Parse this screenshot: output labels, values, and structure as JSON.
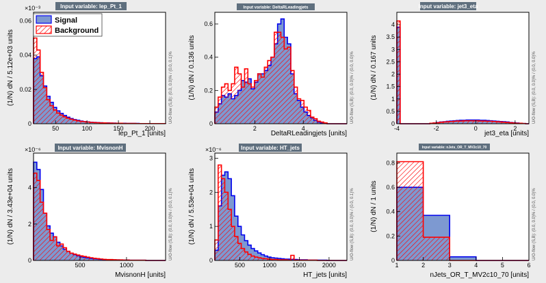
{
  "colors": {
    "signal_fill": "#7d99d1",
    "signal_line": "#0000ee",
    "background_line": "#ff0000"
  },
  "legend": {
    "signal": "Signal",
    "background": "Background"
  },
  "chart_data": [
    {
      "type": "bar",
      "title": "Input variable: lep_Pt_1",
      "xlabel": "lep_Pt_1  [units]",
      "ylabel": "(1/N) dN / 5.12e+03 units",
      "exponent": "×10⁻³",
      "side_label": "U/O-flow (S,B): (0.0, 0.0)% / (0.0, 0.1)%",
      "xlim": [
        15,
        225
      ],
      "ylim": [
        0,
        0.065
      ],
      "xticks": [
        50,
        100,
        150,
        200
      ],
      "xtick_labels": [
        "50",
        "100",
        "150",
        "200"
      ],
      "yticks": [
        0,
        0.02,
        0.04,
        0.06
      ],
      "ytick_labels": [
        "0",
        "0.02",
        "0.04",
        "0.06"
      ],
      "bin_edges": [
        15,
        20.25,
        25.5,
        30.75,
        36,
        41.25,
        46.5,
        51.75,
        57,
        62.25,
        67.5,
        72.75,
        78,
        83.25,
        88.5,
        93.75,
        99,
        104.25,
        109.5,
        114.75,
        120,
        125.25,
        130.5,
        135.75,
        141,
        146.25,
        151.5,
        156.75,
        162,
        167.25,
        172.5,
        177.75,
        183,
        188.25,
        193.5,
        198.75,
        204,
        209.25,
        214.5,
        219.75,
        225
      ],
      "series": [
        {
          "name": "Signal",
          "values": [
            0.038,
            0.039,
            0.028,
            0.022,
            0.016,
            0.0125,
            0.0095,
            0.0075,
            0.006,
            0.0048,
            0.0038,
            0.003,
            0.0024,
            0.002,
            0.0016,
            0.0013,
            0.0011,
            0.0009,
            0.0008,
            0.0007,
            0.0006,
            0.0005,
            0.0005,
            0.0004,
            0.0004,
            0.0003,
            0.0003,
            0.0003,
            0.0002,
            0.0002,
            0.0002,
            0.0002,
            0.0001,
            0.0001,
            0.0001,
            0.0001,
            0.0001,
            0.0001,
            0.0001,
            0.0001
          ]
        },
        {
          "name": "Background",
          "values": [
            0.05,
            0.043,
            0.03,
            0.021,
            0.014,
            0.0105,
            0.008,
            0.0062,
            0.005,
            0.004,
            0.0032,
            0.0026,
            0.0021,
            0.0017,
            0.0014,
            0.0012,
            0.001,
            0.0008,
            0.0007,
            0.0006,
            0.0005,
            0.0005,
            0.0004,
            0.0004,
            0.0003,
            0.0003,
            0.0003,
            0.0002,
            0.0002,
            0.0002,
            0.0002,
            0.0001,
            0.0001,
            0.0001,
            0.0001,
            0.0001,
            0.0001,
            0.0001,
            0.0001,
            0.0001
          ]
        }
      ]
    },
    {
      "type": "bar",
      "title": "Input variable: DeltaRLeadingjets",
      "xlabel": "DeltaRLeadingjets  [units]",
      "ylabel": "(1/N) dN / 0.136 units",
      "exponent": "",
      "side_label": "U/O-flow (S,B): (0.0, 0.0)% / (0.0, 0.0)%",
      "xlim": [
        0.35,
        5.8
      ],
      "ylim": [
        0,
        0.67
      ],
      "xticks": [
        2,
        4
      ],
      "xtick_labels": [
        "2",
        "4"
      ],
      "yticks": [
        0,
        0.2,
        0.4,
        0.6
      ],
      "ytick_labels": [
        "0",
        "0.2",
        "0.4",
        "0.6"
      ],
      "bin_edges": [
        0.35,
        0.4863,
        0.6225,
        0.7588,
        0.895,
        1.0313,
        1.1675,
        1.3038,
        1.44,
        1.5763,
        1.7125,
        1.8488,
        1.985,
        2.1213,
        2.2575,
        2.3938,
        2.53,
        2.6663,
        2.8025,
        2.9388,
        3.075,
        3.2113,
        3.3475,
        3.4838,
        3.62,
        3.7563,
        3.8925,
        4.0288,
        4.165,
        4.3013,
        4.4375,
        4.5738,
        4.71,
        4.8463,
        4.9825,
        5.1188,
        5.255,
        5.3913,
        5.5275,
        5.6638,
        5.8
      ],
      "series": [
        {
          "name": "Signal",
          "values": [
            0.07,
            0.12,
            0.17,
            0.16,
            0.18,
            0.15,
            0.17,
            0.2,
            0.26,
            0.25,
            0.27,
            0.21,
            0.25,
            0.3,
            0.3,
            0.32,
            0.35,
            0.4,
            0.48,
            0.6,
            0.63,
            0.52,
            0.48,
            0.3,
            0.18,
            0.14,
            0.1,
            0.07,
            0.05,
            0.035,
            0.02,
            0.01,
            0.005,
            0.002,
            0,
            0,
            0,
            0,
            0,
            0
          ]
        },
        {
          "name": "Background",
          "values": [
            0.1,
            0.16,
            0.22,
            0.24,
            0.2,
            0.24,
            0.34,
            0.3,
            0.22,
            0.33,
            0.24,
            0.22,
            0.26,
            0.3,
            0.28,
            0.34,
            0.38,
            0.4,
            0.55,
            0.55,
            0.52,
            0.45,
            0.46,
            0.32,
            0.22,
            0.15,
            0.14,
            0.1,
            0.08,
            0.04,
            0.03,
            0.015,
            0.01,
            0.005,
            0,
            0,
            0,
            0,
            0,
            0
          ]
        }
      ]
    },
    {
      "type": "bar",
      "title": "Input variable: jet3_eta",
      "xlabel": "jet3_eta  [units]",
      "ylabel": "(1/N) dN / 0.167 units",
      "exponent": "",
      "side_label": "U/O-flow (S,B): (0.0, 0.0)% / (0.0, 0.0)%",
      "xlim": [
        -4,
        2.7
      ],
      "ylim": [
        0,
        4.5
      ],
      "xticks": [
        -4,
        -2,
        0,
        2
      ],
      "xtick_labels": [
        "-4",
        "-2",
        "0",
        "2"
      ],
      "yticks": [
        0,
        0.5,
        1,
        1.5,
        2,
        2.5,
        3,
        3.5,
        4
      ],
      "ytick_labels": [
        "0",
        "0.5",
        "1",
        "1.5",
        "2",
        "2.5",
        "3",
        "3.5",
        "4"
      ],
      "bin_edges": [
        -4,
        -3.8325,
        -3.665,
        -3.4975,
        -3.33,
        -3.1625,
        -2.995,
        -2.8275,
        -2.66,
        -2.4925,
        -2.325,
        -2.1575,
        -1.99,
        -1.8225,
        -1.655,
        -1.4875,
        -1.32,
        -1.1525,
        -0.985,
        -0.8175,
        -0.65,
        -0.4825,
        -0.315,
        -0.1475,
        0.02,
        0.1875,
        0.355,
        0.5225,
        0.69,
        0.8575,
        1.025,
        1.1925,
        1.36,
        1.5275,
        1.695,
        1.8625,
        2.03,
        2.1975,
        2.365,
        2.5325,
        2.7
      ],
      "series": [
        {
          "name": "Signal",
          "values": [
            3.9,
            0,
            0,
            0,
            0,
            0,
            0,
            0,
            0,
            0,
            0.02,
            0.03,
            0.05,
            0.07,
            0.08,
            0.1,
            0.11,
            0.12,
            0.13,
            0.14,
            0.14,
            0.15,
            0.15,
            0.15,
            0.15,
            0.14,
            0.14,
            0.13,
            0.12,
            0.11,
            0.1,
            0.09,
            0.08,
            0.07,
            0.05,
            0.04,
            0.03,
            0.02,
            0.01,
            0
          ]
        },
        {
          "name": "Background",
          "values": [
            4.15,
            0,
            0,
            0,
            0,
            0,
            0,
            0,
            0,
            0,
            0.02,
            0.03,
            0.04,
            0.06,
            0.07,
            0.08,
            0.09,
            0.1,
            0.11,
            0.11,
            0.12,
            0.12,
            0.12,
            0.12,
            0.12,
            0.11,
            0.11,
            0.1,
            0.1,
            0.09,
            0.08,
            0.07,
            0.06,
            0.05,
            0.04,
            0.03,
            0.02,
            0.02,
            0.01,
            0
          ]
        }
      ]
    },
    {
      "type": "bar",
      "title": "Input variable: MvisnonH",
      "xlabel": "MvisnonH  [units]",
      "ylabel": "(1/N) dN / 3.43e+04 units",
      "exponent": "×10⁻⁶",
      "side_label": "U/O-flow (S,B): (0.0, 0.0)% / (0.0, 0.1)%",
      "xlim": [
        0,
        1420
      ],
      "ylim": [
        0,
        5.9
      ],
      "xticks": [
        500,
        1000
      ],
      "xtick_labels": [
        "500",
        "1000"
      ],
      "yticks": [
        0,
        2,
        4
      ],
      "ytick_labels": [
        "0",
        "2",
        "4"
      ],
      "bin_edges": [
        0,
        35.5,
        71,
        106.5,
        142,
        177.5,
        213,
        248.5,
        284,
        319.5,
        355,
        390.5,
        426,
        461.5,
        497,
        532.5,
        568,
        603.5,
        639,
        674.5,
        710,
        745.5,
        781,
        816.5,
        852,
        887.5,
        923,
        958.5,
        994,
        1029.5,
        1065,
        1100.5,
        1136,
        1171.5,
        1207,
        1242.5,
        1278,
        1313.5,
        1349,
        1384.5,
        1420
      ],
      "series": [
        {
          "name": "Signal",
          "values": [
            5.4,
            5.0,
            3.9,
            2.6,
            1.9,
            1.5,
            1.3,
            1.0,
            0.8,
            0.62,
            0.5,
            0.4,
            0.32,
            0.26,
            0.2,
            0.17,
            0.14,
            0.11,
            0.09,
            0.08,
            0.06,
            0.05,
            0.04,
            0.04,
            0.03,
            0.03,
            0.02,
            0.02,
            0.02,
            0.01,
            0.01,
            0.01,
            0.01,
            0.01,
            0,
            0,
            0,
            0,
            0,
            0
          ]
        },
        {
          "name": "Background",
          "values": [
            4.8,
            4.4,
            3.2,
            2.6,
            1.7,
            1.1,
            1.3,
            0.8,
            0.9,
            0.7,
            0.5,
            0.4,
            0.35,
            0.3,
            0.25,
            0.22,
            0.18,
            0.15,
            0.12,
            0.1,
            0.08,
            0.06,
            0.05,
            0.05,
            0.04,
            0.03,
            0.03,
            0.02,
            0.02,
            0.01,
            0.01,
            0.01,
            0.01,
            0.01,
            0,
            0,
            0,
            0,
            0,
            0
          ]
        }
      ]
    },
    {
      "type": "bar",
      "title": "Input variable: HT_jets",
      "xlabel": "HT_jets  [units]",
      "ylabel": "(1/N) dN / 5.53e+04 units",
      "exponent": "×10⁻⁶",
      "side_label": "U/O-flow (S,B): (0.0, 0.0)% / (0.0, 0.1)%",
      "xlim": [
        80,
        2300
      ],
      "ylim": [
        0,
        3.15
      ],
      "xticks": [
        500,
        1000,
        1500,
        2000
      ],
      "xtick_labels": [
        "500",
        "1000",
        "1500",
        "2000"
      ],
      "yticks": [
        0,
        1,
        2,
        3
      ],
      "ytick_labels": [
        "0",
        "1",
        "2",
        "3"
      ],
      "bin_edges": [
        80,
        135.5,
        191,
        246.5,
        302,
        357.5,
        413,
        468.5,
        524,
        579.5,
        635,
        690.5,
        746,
        801.5,
        857,
        912.5,
        968,
        1023.5,
        1079,
        1134.5,
        1190,
        1245.5,
        1301,
        1356.5,
        1412,
        1467.5,
        1523,
        1578.5,
        1634,
        1689.5,
        1745,
        1800.5,
        1856,
        1911.5,
        1967,
        2022.5,
        2078,
        2133.5,
        2189,
        2244.5,
        2300
      ],
      "series": [
        {
          "name": "Signal",
          "values": [
            0.3,
            1.6,
            2.5,
            2.6,
            2.4,
            1.9,
            1.3,
            1.0,
            0.75,
            0.58,
            0.45,
            0.35,
            0.28,
            0.22,
            0.17,
            0.13,
            0.1,
            0.08,
            0.07,
            0.06,
            0.05,
            0.04,
            0.04,
            0.03,
            0.03,
            0.02,
            0.02,
            0.02,
            0.01,
            0.01,
            0.01,
            0.01,
            0.01,
            0.01,
            0,
            0,
            0,
            0,
            0,
            0
          ]
        },
        {
          "name": "Background",
          "values": [
            0.6,
            2.8,
            2.4,
            2.0,
            1.5,
            1.0,
            0.7,
            0.5,
            0.35,
            0.25,
            0.18,
            0.13,
            0.1,
            0.08,
            0.06,
            0.05,
            0.04,
            0.03,
            0.03,
            0.02,
            0.02,
            0.02,
            0.01,
            0.15,
            0.01,
            0.01,
            0.01,
            0.01,
            0.01,
            0.01,
            0.01,
            0,
            0,
            0,
            0,
            0,
            0,
            0,
            0,
            0
          ]
        }
      ]
    },
    {
      "type": "bar",
      "title": "Input variable: nJets_OR_T_MV2c10_70",
      "xlabel": "nJets_OR_T_MV2c10_70  [units]",
      "ylabel": "(1/N) dN / 1 units",
      "exponent": "",
      "side_label": "U/O-flow (S,B): (0.0, 0.0)% / (0.0, 0.0)%",
      "xlim": [
        1,
        6
      ],
      "ylim": [
        0,
        0.88
      ],
      "xticks": [
        1,
        2,
        3,
        4,
        5,
        6
      ],
      "xtick_labels": [
        "1",
        "2",
        "3",
        "4",
        "5",
        "6"
      ],
      "yticks": [
        0,
        0.2,
        0.4,
        0.6,
        0.8
      ],
      "ytick_labels": [
        "0",
        "0.2",
        "0.4",
        "0.6",
        "0.8"
      ],
      "bin_edges": [
        1,
        2,
        3,
        4,
        5,
        6
      ],
      "series": [
        {
          "name": "Signal",
          "values": [
            0.6,
            0.37,
            0.03,
            0,
            0
          ]
        },
        {
          "name": "Background",
          "values": [
            0.81,
            0.19,
            0,
            0,
            0
          ]
        }
      ]
    }
  ]
}
